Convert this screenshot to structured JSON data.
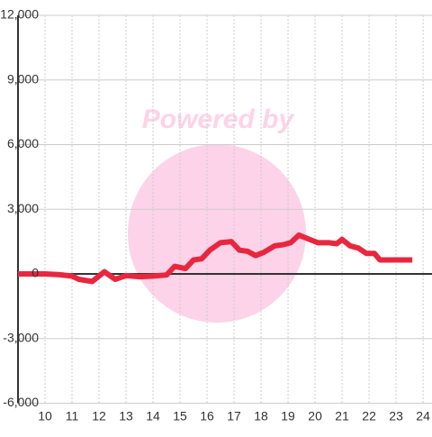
{
  "chart_data": {
    "type": "line",
    "watermark": "Powered by",
    "x": [
      9.0,
      9.5,
      10.0,
      10.5,
      11.0,
      11.25,
      11.75,
      12.2,
      12.6,
      13.0,
      13.5,
      14.0,
      14.5,
      14.8,
      15.2,
      15.5,
      15.8,
      16.1,
      16.5,
      16.9,
      17.2,
      17.5,
      17.8,
      18.1,
      18.5,
      18.8,
      19.1,
      19.4,
      19.8,
      20.1,
      20.5,
      20.8,
      21.0,
      21.3,
      21.6,
      21.9,
      22.2,
      22.4,
      22.8,
      23.2,
      23.6
    ],
    "series": [
      {
        "color": "#e8273f",
        "values": [
          0,
          0,
          0,
          -30,
          -100,
          -250,
          -350,
          100,
          -250,
          -80,
          -130,
          -100,
          -50,
          350,
          250,
          650,
          700,
          1100,
          1450,
          1500,
          1100,
          1050,
          850,
          1000,
          1300,
          1350,
          1450,
          1800,
          1600,
          1450,
          1450,
          1400,
          1600,
          1300,
          1200,
          950,
          950,
          650,
          650,
          650,
          650
        ]
      }
    ],
    "xlim": [
      9,
      24.33
    ],
    "xticks": [
      10,
      11,
      12,
      13,
      14,
      15,
      16,
      17,
      18,
      19,
      20,
      21,
      22,
      23,
      24
    ],
    "ylim": [
      -6000,
      12000
    ],
    "yticks": [
      {
        "value": -6000,
        "label": "-6,000"
      },
      {
        "value": -3000,
        "label": "-3,000"
      },
      0,
      {
        "value": 3000,
        "label": "3,000"
      },
      {
        "value": 6000,
        "label": "6,000"
      },
      {
        "value": 9000,
        "label": "9,000"
      },
      {
        "value": 12000,
        "label": "12,000"
      }
    ],
    "grid": true
  }
}
